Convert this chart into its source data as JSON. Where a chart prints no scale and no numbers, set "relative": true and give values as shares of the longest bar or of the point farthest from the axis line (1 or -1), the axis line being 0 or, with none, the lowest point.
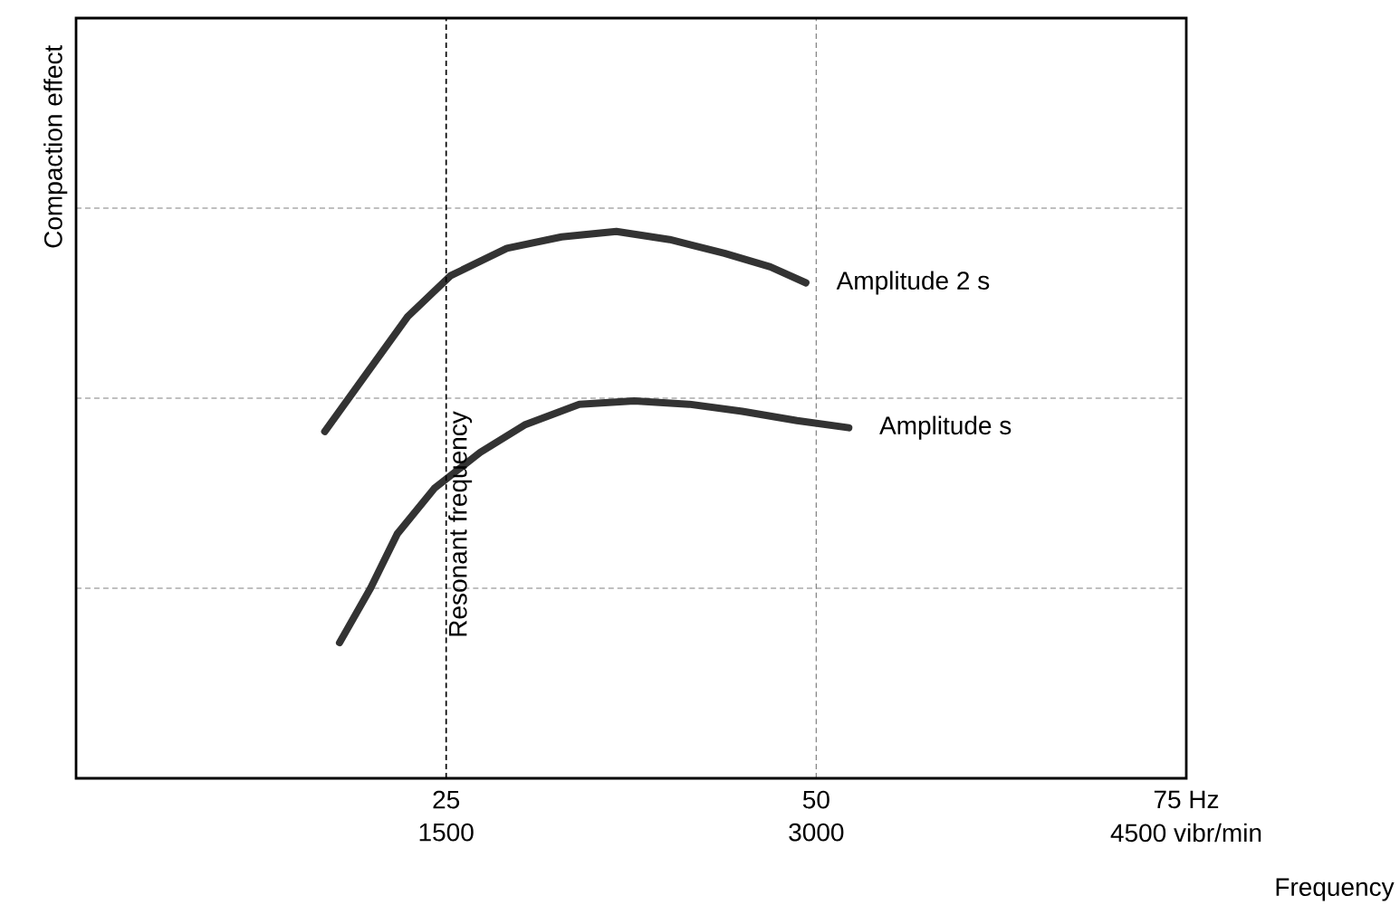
{
  "chart_data": {
    "type": "line",
    "relative": true,
    "xlabel": "Frequency",
    "ylabel": "Compaction effect",
    "xlim": [
      0,
      75
    ],
    "xticks": [
      25,
      50,
      {
        "value": 75,
        "label": "75 Hz"
      }
    ],
    "x2lim": [
      0,
      4500
    ],
    "x2ticks": [
      1500,
      3000,
      {
        "value": 4500,
        "label": "4500 vibr/min"
      }
    ],
    "grid": true,
    "ref_lines": [
      {
        "axis": "x",
        "value": 25,
        "label": "Resonant frequency",
        "line_style": "dashed"
      }
    ],
    "series": [
      {
        "name": "Amplitude 2 s",
        "color": "#333333",
        "x": [
          16.8,
          19.3,
          22.4,
          25.3,
          29.1,
          32.8,
          36.5,
          40.1,
          43.8,
          46.9,
          49.3
        ],
        "values": [
          0.634,
          0.728,
          0.844,
          0.919,
          0.969,
          0.99,
          1.0,
          0.985,
          0.96,
          0.935,
          0.906
        ]
      },
      {
        "name": "Amplitude s",
        "color": "#333333",
        "x": [
          17.8,
          19.9,
          21.7,
          24.2,
          27.3,
          30.3,
          34.0,
          37.7,
          41.4,
          45.0,
          48.7,
          52.2
        ],
        "values": [
          0.248,
          0.348,
          0.447,
          0.53,
          0.596,
          0.646,
          0.684,
          0.69,
          0.684,
          0.671,
          0.654,
          0.641
        ]
      }
    ]
  }
}
